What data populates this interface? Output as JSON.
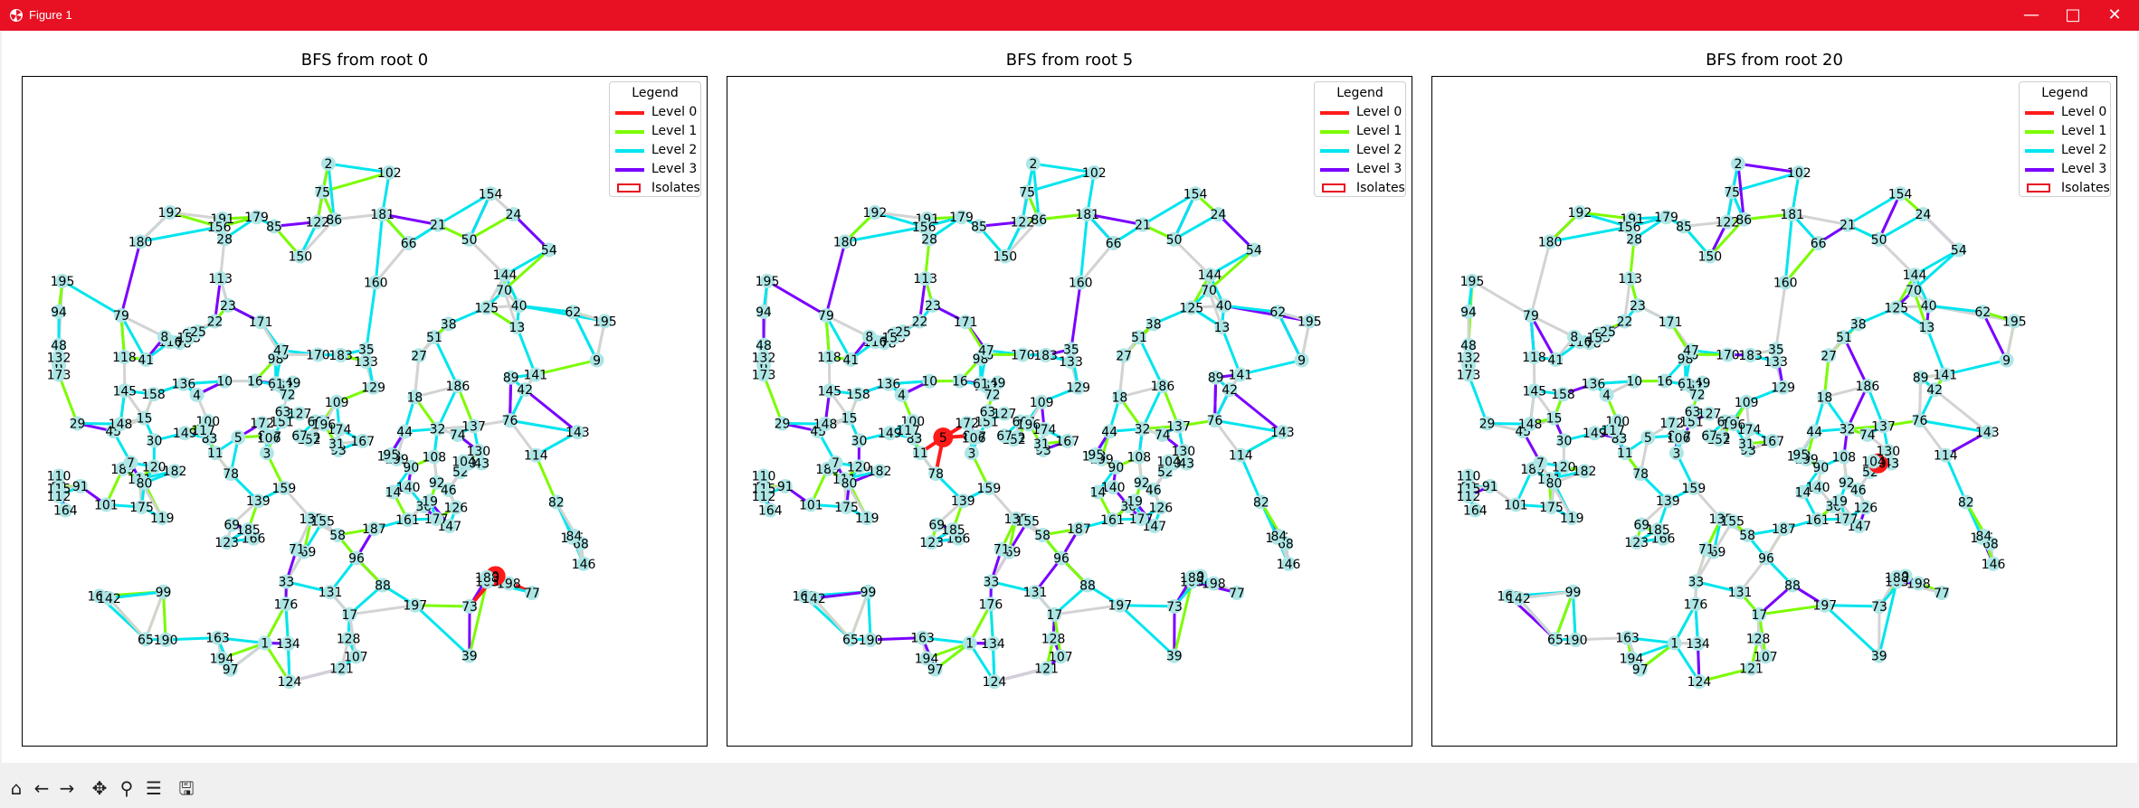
{
  "window": {
    "title": "Figure 1",
    "icon": "matplotlib-icon",
    "controls": [
      "minimize-icon",
      "maximize-icon",
      "close-icon"
    ]
  },
  "colors": {
    "titlebar": "#e81123",
    "level0": "#ff1a1a",
    "level1": "#7cfc00",
    "level2": "#00e5ee",
    "level3": "#7a00ff",
    "edge_default": "#d3d3d3",
    "node": "#aee6e6"
  },
  "legend": {
    "title": "Legend",
    "items": [
      "Level 0",
      "Level 1",
      "Level 2",
      "Level 3",
      "Isolates"
    ]
  },
  "panels": [
    {
      "title": "BFS from root 0",
      "root": 0
    },
    {
      "title": "BFS from root 5",
      "root": 5
    },
    {
      "title": "BFS from root 20",
      "root": 20
    }
  ],
  "graph": {
    "nodes": [
      {
        "id": 45
      },
      {
        "id": 140
      },
      {
        "id": 111
      },
      {
        "id": 165
      },
      {
        "id": 178
      },
      {
        "id": 1
      },
      {
        "id": 49
      },
      {
        "id": 100
      },
      {
        "id": 26
      },
      {
        "id": 41
      },
      {
        "id": 93
      },
      {
        "id": 195
      },
      {
        "id": 147
      },
      {
        "id": 18
      },
      {
        "id": 175
      },
      {
        "id": 171
      },
      {
        "id": 39
      },
      {
        "id": 11
      },
      {
        "id": 136
      },
      {
        "id": 73
      },
      {
        "id": 69
      },
      {
        "id": 68
      },
      {
        "id": 121
      },
      {
        "id": 83
      },
      {
        "id": 64
      },
      {
        "id": 86
      },
      {
        "id": 14
      },
      {
        "id": 81
      },
      {
        "id": 43
      },
      {
        "id": 28
      },
      {
        "id": 186
      },
      {
        "id": 80
      },
      {
        "id": 164
      },
      {
        "id": 120
      },
      {
        "id": 135
      },
      {
        "id": 170
      },
      {
        "id": 134
      },
      {
        "id": 24
      },
      {
        "id": 62
      },
      {
        "id": 122
      },
      {
        "id": 127
      },
      {
        "id": 166
      },
      {
        "id": 96
      },
      {
        "id": 191
      },
      {
        "id": 124
      },
      {
        "id": 137
      },
      {
        "id": 116
      },
      {
        "id": 146
      },
      {
        "id": 55
      },
      {
        "id": 8
      },
      {
        "id": 198
      },
      {
        "id": 27
      },
      {
        "id": 44
      },
      {
        "id": 179
      },
      {
        "id": 192
      },
      {
        "id": 107
      },
      {
        "id": 31
      },
      {
        "id": 174
      },
      {
        "id": 6
      },
      {
        "id": 133
      },
      {
        "id": 151
      },
      {
        "id": 33
      },
      {
        "id": 52
      },
      {
        "id": 58
      },
      {
        "id": 183
      },
      {
        "id": 57
      },
      {
        "id": 162
      },
      {
        "id": 3
      },
      {
        "id": 30
      },
      {
        "id": 143
      },
      {
        "id": 91
      },
      {
        "id": 190
      },
      {
        "id": 85
      },
      {
        "id": 169
      },
      {
        "id": 84
      },
      {
        "id": 167
      },
      {
        "id": 187
      },
      {
        "id": 114
      },
      {
        "id": 182
      },
      {
        "id": 132
      },
      {
        "id": 158
      },
      {
        "id": 77
      },
      {
        "id": 113
      },
      {
        "id": 40
      },
      {
        "id": 115
      },
      {
        "id": 38
      },
      {
        "id": 29
      },
      {
        "id": 102
      },
      {
        "id": 48
      },
      {
        "id": 180
      },
      {
        "id": 37
      },
      {
        "id": 42
      },
      {
        "id": 23
      },
      {
        "id": 75
      },
      {
        "id": 15
      },
      {
        "id": 144
      },
      {
        "id": 20
      },
      {
        "id": 110
      },
      {
        "id": 98
      },
      {
        "id": 47
      },
      {
        "id": 88
      },
      {
        "id": 12
      },
      {
        "id": 89
      },
      {
        "id": 130
      },
      {
        "id": 197
      },
      {
        "id": 128
      },
      {
        "id": 194
      },
      {
        "id": 153
      },
      {
        "id": 35
      },
      {
        "id": 123
      },
      {
        "id": 125
      },
      {
        "id": 199
      },
      {
        "id": 117
      },
      {
        "id": 119
      },
      {
        "id": 152
      },
      {
        "id": 82
      },
      {
        "id": 189
      },
      {
        "id": 129
      },
      {
        "id": 78
      },
      {
        "id": 67
      },
      {
        "id": 0
      },
      {
        "id": 109
      },
      {
        "id": 4
      },
      {
        "id": 139
      },
      {
        "id": 150
      },
      {
        "id": 17
      },
      {
        "id": 54
      },
      {
        "id": 168
      },
      {
        "id": 160
      },
      {
        "id": 90
      },
      {
        "id": 105
      },
      {
        "id": 195
      },
      {
        "id": 71
      },
      {
        "id": 159
      },
      {
        "id": 13
      },
      {
        "id": 181
      },
      {
        "id": 176
      },
      {
        "id": 188
      },
      {
        "id": 141
      },
      {
        "id": 185
      },
      {
        "id": 118
      },
      {
        "id": 177
      },
      {
        "id": 21
      },
      {
        "id": 145
      },
      {
        "id": 25
      },
      {
        "id": 138
      },
      {
        "id": 142
      },
      {
        "id": 2
      },
      {
        "id": 112
      },
      {
        "id": 106
      },
      {
        "id": 51
      },
      {
        "id": 155
      },
      {
        "id": 104
      },
      {
        "id": 65
      },
      {
        "id": 66
      },
      {
        "id": 63
      },
      {
        "id": 5
      },
      {
        "id": 149
      },
      {
        "id": 131
      },
      {
        "id": 10
      },
      {
        "id": 79
      },
      {
        "id": 172
      },
      {
        "id": 76
      },
      {
        "id": 60
      },
      {
        "id": 61
      },
      {
        "id": 92
      },
      {
        "id": 101
      },
      {
        "id": 9
      },
      {
        "id": 196
      },
      {
        "id": 154
      },
      {
        "id": 50
      },
      {
        "id": 94
      },
      {
        "id": 74
      },
      {
        "id": 72
      },
      {
        "id": 22
      },
      {
        "id": 97
      },
      {
        "id": 16
      },
      {
        "id": 156
      },
      {
        "id": 32
      },
      {
        "id": 36
      },
      {
        "id": 108
      },
      {
        "id": 148
      },
      {
        "id": 173
      },
      {
        "id": 46
      },
      {
        "id": 95
      },
      {
        "id": 161
      },
      {
        "id": 19
      },
      {
        "id": 126
      },
      {
        "id": 163
      },
      {
        "id": 7
      },
      {
        "id": 70
      },
      {
        "id": 99
      }
    ]
  }
}
